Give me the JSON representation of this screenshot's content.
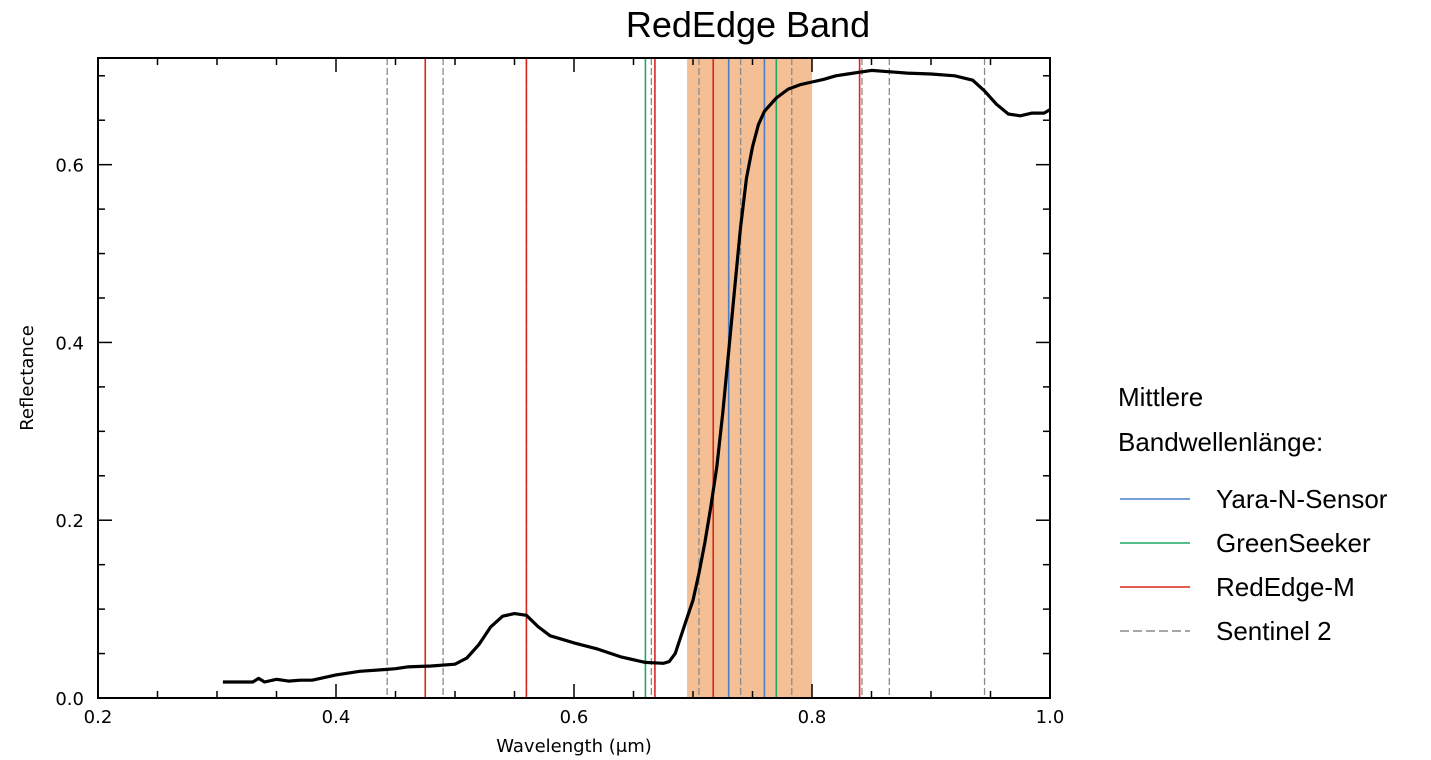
{
  "chart_data": {
    "type": "line",
    "title": "RedEdge Band",
    "xlabel": "Wavelength (μm)",
    "ylabel": "Reflectance",
    "xlim": [
      0.2,
      1.0
    ],
    "ylim": [
      0.0,
      0.72
    ],
    "xticks": [
      0.2,
      0.4,
      0.6,
      0.8,
      1.0
    ],
    "xtick_labels": [
      "0.2",
      "0.4",
      "0.6",
      "0.8",
      "1.0"
    ],
    "yticks": [
      0.0,
      0.2,
      0.4,
      0.6
    ],
    "ytick_labels": [
      "0.0",
      "0.2",
      "0.4",
      "0.6"
    ],
    "grid": false,
    "highlight_band": {
      "x_start": 0.695,
      "x_end": 0.8,
      "color": "#f4bf94"
    },
    "spectrum": {
      "color": "#000000",
      "x": [
        0.305,
        0.33,
        0.335,
        0.34,
        0.35,
        0.36,
        0.37,
        0.38,
        0.39,
        0.4,
        0.42,
        0.44,
        0.45,
        0.46,
        0.48,
        0.5,
        0.51,
        0.52,
        0.53,
        0.54,
        0.55,
        0.56,
        0.57,
        0.58,
        0.59,
        0.6,
        0.62,
        0.64,
        0.66,
        0.675,
        0.68,
        0.685,
        0.69,
        0.695,
        0.7,
        0.705,
        0.71,
        0.715,
        0.72,
        0.725,
        0.73,
        0.735,
        0.74,
        0.745,
        0.75,
        0.755,
        0.76,
        0.77,
        0.78,
        0.79,
        0.8,
        0.81,
        0.82,
        0.83,
        0.84,
        0.85,
        0.86,
        0.87,
        0.88,
        0.9,
        0.92,
        0.935,
        0.945,
        0.955,
        0.965,
        0.975,
        0.985,
        0.995,
        1.0
      ],
      "y": [
        0.018,
        0.018,
        0.022,
        0.018,
        0.021,
        0.019,
        0.02,
        0.02,
        0.023,
        0.026,
        0.03,
        0.032,
        0.033,
        0.035,
        0.036,
        0.038,
        0.045,
        0.06,
        0.08,
        0.092,
        0.095,
        0.093,
        0.08,
        0.07,
        0.066,
        0.062,
        0.055,
        0.046,
        0.04,
        0.039,
        0.041,
        0.05,
        0.07,
        0.09,
        0.11,
        0.14,
        0.175,
        0.215,
        0.26,
        0.32,
        0.39,
        0.46,
        0.53,
        0.585,
        0.62,
        0.645,
        0.66,
        0.675,
        0.685,
        0.69,
        0.693,
        0.696,
        0.7,
        0.702,
        0.704,
        0.706,
        0.705,
        0.704,
        0.703,
        0.702,
        0.7,
        0.695,
        0.683,
        0.668,
        0.657,
        0.655,
        0.658,
        0.658,
        0.662
      ]
    },
    "legend": {
      "title_lines": [
        "Mittlere",
        "Bandwellenlänge:"
      ],
      "entries": [
        {
          "name": "Yara-N-Sensor",
          "color": "#4a7fc8",
          "dash": false
        },
        {
          "name": "GreenSeeker",
          "color": "#1fa866",
          "dash": false
        },
        {
          "name": "RedEdge-M",
          "color": "#d9261c",
          "dash": false
        },
        {
          "name": "Sentinel 2",
          "color": "#8a8a8a",
          "dash": true
        }
      ]
    },
    "band_lines": [
      {
        "sensor": "Sentinel 2",
        "x": [
          0.443,
          0.49,
          0.56,
          0.665,
          0.705,
          0.74,
          0.783,
          0.842,
          0.865,
          0.945
        ]
      },
      {
        "sensor": "RedEdge-M",
        "x": [
          0.475,
          0.56,
          0.668,
          0.717,
          0.84
        ]
      },
      {
        "sensor": "GreenSeeker",
        "x": [
          0.66,
          0.77
        ]
      },
      {
        "sensor": "Yara-N-Sensor",
        "x": [
          0.73,
          0.76
        ]
      }
    ]
  }
}
